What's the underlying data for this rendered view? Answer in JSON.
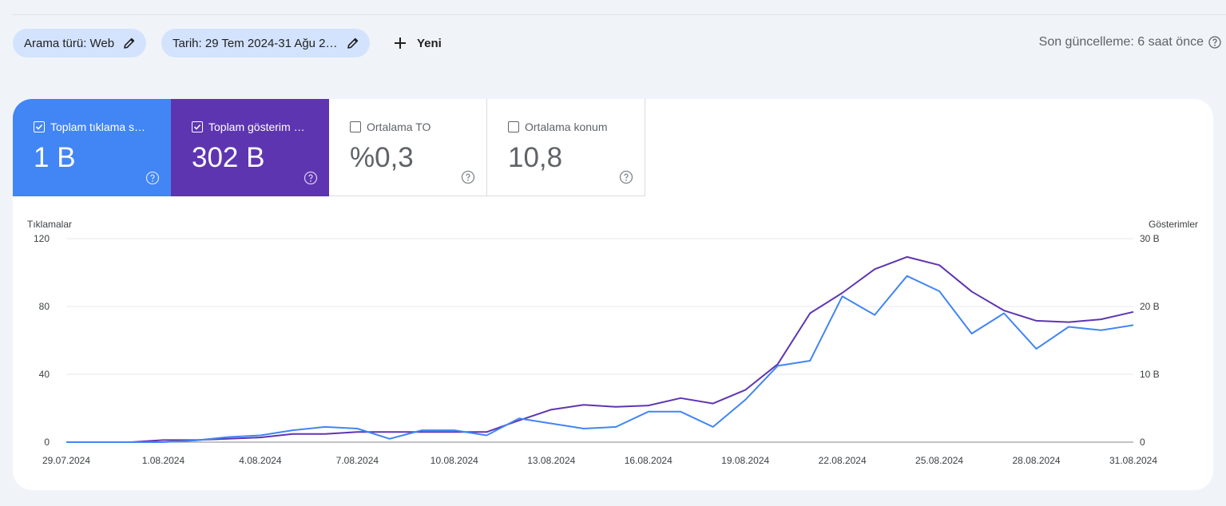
{
  "filters": [
    {
      "label": "Arama türü: Web"
    },
    {
      "label": "Tarih: 29 Tem 2024-31 Ağu 2…"
    }
  ],
  "new_button": {
    "label": "Yeni"
  },
  "last_updated": "Son güncelleme: 6 saat önce",
  "metrics": [
    {
      "label": "Toplam tıklama s…",
      "value": "1 B",
      "checked": true,
      "color": "#4285f4"
    },
    {
      "label": "Toplam gösterim …",
      "value": "302 B",
      "checked": true,
      "color": "#5e35b1"
    },
    {
      "label": "Ortalama TO",
      "value": "%0,3",
      "checked": false
    },
    {
      "label": "Ortalama konum",
      "value": "10,8",
      "checked": false
    }
  ],
  "chart_data": {
    "type": "line",
    "x": [
      "29.07.2024",
      "30.07.2024",
      "31.07.2024",
      "1.08.2024",
      "2.08.2024",
      "3.08.2024",
      "4.08.2024",
      "5.08.2024",
      "6.08.2024",
      "7.08.2024",
      "8.08.2024",
      "9.08.2024",
      "10.08.2024",
      "11.08.2024",
      "12.08.2024",
      "13.08.2024",
      "14.08.2024",
      "15.08.2024",
      "16.08.2024",
      "17.08.2024",
      "18.08.2024",
      "19.08.2024",
      "20.08.2024",
      "21.08.2024",
      "22.08.2024",
      "23.08.2024",
      "24.08.2024",
      "25.08.2024",
      "26.08.2024",
      "27.08.2024",
      "28.08.2024",
      "29.08.2024",
      "30.08.2024",
      "31.08.2024"
    ],
    "xticks": [
      "29.07.2024",
      "1.08.2024",
      "4.08.2024",
      "7.08.2024",
      "10.08.2024",
      "13.08.2024",
      "16.08.2024",
      "19.08.2024",
      "22.08.2024",
      "25.08.2024",
      "28.08.2024",
      "31.08.2024"
    ],
    "y_left": {
      "label": "Tıklamalar",
      "ticks": [
        "0",
        "40",
        "80",
        "120"
      ],
      "range": [
        0,
        120
      ]
    },
    "y_right": {
      "label": "Gösterimler",
      "ticks": [
        "0",
        "10 B",
        "20 B",
        "30 B"
      ],
      "range": [
        0,
        30000
      ]
    },
    "series": [
      {
        "name": "Toplam tıklama s…",
        "axis": "left",
        "color": "#4285f4",
        "values": [
          0,
          0,
          0,
          0,
          1,
          3,
          4,
          7,
          9,
          8,
          2,
          7,
          7,
          4,
          14,
          11,
          8,
          9,
          18,
          18,
          9,
          25,
          45,
          48,
          86,
          75,
          98,
          89,
          64,
          76,
          55,
          68,
          66,
          69
        ]
      },
      {
        "name": "Toplam gösterim …",
        "axis": "right",
        "color": "#5e35b1",
        "values": [
          0,
          0,
          0,
          300,
          300,
          500,
          700,
          1200,
          1200,
          1500,
          1500,
          1500,
          1500,
          1500,
          3200,
          4800,
          5500,
          5200,
          5400,
          6500,
          5700,
          7700,
          11500,
          19000,
          22000,
          25500,
          27300,
          26100,
          22200,
          19400,
          17900,
          17700,
          18100,
          19200
        ]
      }
    ],
    "grid": true
  }
}
